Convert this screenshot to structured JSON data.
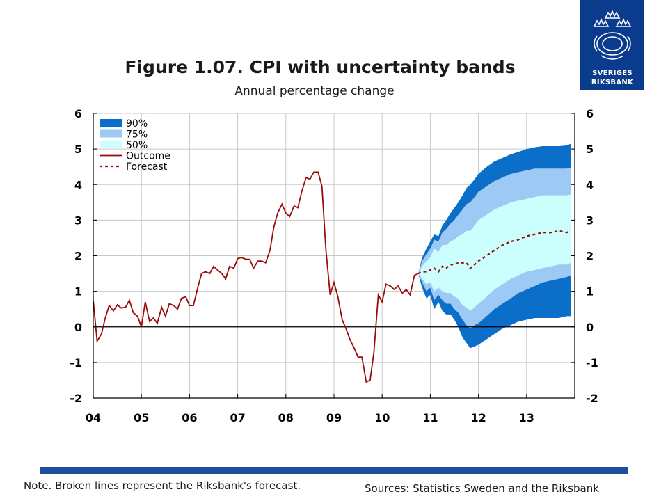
{
  "header": {
    "title": "Figure 1.07. CPI with uncertainty bands",
    "subtitle": "Annual percentage change"
  },
  "logo": {
    "line1": "SVERIGES",
    "line2": "RIKSBANK",
    "icon": "crown-seal-icon"
  },
  "footer": {
    "note": "Note. Broken lines represent the Riksbank's forecast.",
    "sources": "Sources: Statistics Sweden and the Riksbank"
  },
  "colors": {
    "band90": "#0b6fc9",
    "band75": "#9dcaf4",
    "band50": "#ccfefe",
    "outcome": "#9b0a0a",
    "forecast": "#9b0a0a",
    "grid": "#c8c8c8",
    "bar": "#1f4e9a"
  },
  "chart_data": {
    "type": "line",
    "title": "Figure 1.07. CPI with uncertainty bands",
    "subtitle": "Annual percentage change",
    "xlabel": "",
    "ylabel": "",
    "x_tick_labels": [
      "04",
      "05",
      "06",
      "07",
      "08",
      "09",
      "10",
      "11",
      "12",
      "13"
    ],
    "x_range": [
      2004.0,
      2014.0
    ],
    "ylim": [
      -2,
      6
    ],
    "y_ticks": [
      -2,
      -1,
      0,
      1,
      2,
      3,
      4,
      5,
      6
    ],
    "grid": true,
    "legend_position": "top-left",
    "legend": [
      "90%",
      "75%",
      "50%",
      "Outcome",
      "Forecast"
    ],
    "outcome": {
      "name": "Outcome",
      "x": [
        2004.0,
        2004.08,
        2004.17,
        2004.25,
        2004.33,
        2004.42,
        2004.5,
        2004.58,
        2004.67,
        2004.75,
        2004.83,
        2004.92,
        2005.0,
        2005.08,
        2005.17,
        2005.25,
        2005.33,
        2005.42,
        2005.5,
        2005.58,
        2005.67,
        2005.75,
        2005.83,
        2005.92,
        2006.0,
        2006.08,
        2006.17,
        2006.25,
        2006.33,
        2006.42,
        2006.5,
        2006.58,
        2006.67,
        2006.75,
        2006.83,
        2006.92,
        2007.0,
        2007.08,
        2007.17,
        2007.25,
        2007.33,
        2007.42,
        2007.5,
        2007.58,
        2007.67,
        2007.75,
        2007.83,
        2007.92,
        2008.0,
        2008.08,
        2008.17,
        2008.25,
        2008.33,
        2008.42,
        2008.5,
        2008.58,
        2008.67,
        2008.75,
        2008.83,
        2008.92,
        2009.0,
        2009.08,
        2009.17,
        2009.25,
        2009.33,
        2009.42,
        2009.5,
        2009.58,
        2009.67,
        2009.75,
        2009.83,
        2009.92,
        2010.0,
        2010.08,
        2010.17,
        2010.25,
        2010.33,
        2010.42,
        2010.5,
        2010.58,
        2010.67,
        2010.75
      ],
      "values": [
        0.75,
        -0.4,
        -0.2,
        0.25,
        0.6,
        0.45,
        0.62,
        0.53,
        0.55,
        0.75,
        0.4,
        0.3,
        0.0,
        0.7,
        0.15,
        0.25,
        0.1,
        0.55,
        0.3,
        0.65,
        0.6,
        0.5,
        0.8,
        0.85,
        0.6,
        0.6,
        1.1,
        1.5,
        1.55,
        1.5,
        1.7,
        1.6,
        1.5,
        1.35,
        1.7,
        1.65,
        1.92,
        1.95,
        1.9,
        1.9,
        1.65,
        1.85,
        1.85,
        1.8,
        2.15,
        2.8,
        3.2,
        3.45,
        3.2,
        3.1,
        3.4,
        3.35,
        3.8,
        4.2,
        4.15,
        4.35,
        4.35,
        3.95,
        2.2,
        0.9,
        1.25,
        0.85,
        0.2,
        -0.05,
        -0.35,
        -0.6,
        -0.85,
        -0.85,
        -1.55,
        -1.5,
        -0.7,
        0.9,
        0.7,
        1.2,
        1.15,
        1.05,
        1.15,
        0.95,
        1.05,
        0.9,
        1.45,
        1.5
      ]
    },
    "forecast": {
      "name": "Forecast",
      "x": [
        2010.75,
        2010.83,
        2010.92,
        2011.0,
        2011.08,
        2011.17,
        2011.25,
        2011.33,
        2011.42,
        2011.5,
        2011.58,
        2011.67,
        2011.75,
        2011.83,
        2011.92,
        2012.0,
        2012.17,
        2012.33,
        2012.5,
        2012.67,
        2012.83,
        2013.0,
        2013.17,
        2013.33,
        2013.5,
        2013.67,
        2013.83,
        2013.92
      ],
      "values": [
        1.5,
        1.55,
        1.55,
        1.6,
        1.65,
        1.55,
        1.7,
        1.65,
        1.75,
        1.75,
        1.8,
        1.8,
        1.8,
        1.65,
        1.75,
        1.85,
        2.0,
        2.15,
        2.3,
        2.4,
        2.45,
        2.55,
        2.6,
        2.65,
        2.65,
        2.7,
        2.65,
        2.7
      ]
    },
    "bands": {
      "x": [
        2010.75,
        2010.83,
        2010.92,
        2011.0,
        2011.08,
        2011.17,
        2011.25,
        2011.33,
        2011.42,
        2011.5,
        2011.58,
        2011.67,
        2011.75,
        2011.83,
        2011.92,
        2012.0,
        2012.17,
        2012.33,
        2012.5,
        2012.67,
        2012.83,
        2013.0,
        2013.17,
        2013.33,
        2013.5,
        2013.67,
        2013.83,
        2013.92
      ],
      "p90_low": [
        1.5,
        1.1,
        0.8,
        0.9,
        0.5,
        0.7,
        0.45,
        0.35,
        0.35,
        0.2,
        0.0,
        -0.3,
        -0.45,
        -0.6,
        -0.55,
        -0.5,
        -0.35,
        -0.2,
        -0.05,
        0.05,
        0.15,
        0.2,
        0.25,
        0.25,
        0.25,
        0.25,
        0.3,
        0.3
      ],
      "p75_low": [
        1.5,
        1.25,
        1.0,
        1.1,
        0.75,
        0.9,
        0.75,
        0.65,
        0.65,
        0.5,
        0.4,
        0.2,
        0.05,
        -0.05,
        0.05,
        0.1,
        0.3,
        0.5,
        0.65,
        0.8,
        0.95,
        1.05,
        1.15,
        1.25,
        1.3,
        1.35,
        1.4,
        1.45
      ],
      "p50_low": [
        1.5,
        1.35,
        1.2,
        1.25,
        1.0,
        1.1,
        1.0,
        0.95,
        0.95,
        0.85,
        0.8,
        0.6,
        0.55,
        0.45,
        0.55,
        0.65,
        0.85,
        1.05,
        1.2,
        1.35,
        1.45,
        1.55,
        1.6,
        1.65,
        1.7,
        1.75,
        1.75,
        1.8
      ],
      "p50_high": [
        1.5,
        1.7,
        1.85,
        1.95,
        2.2,
        2.1,
        2.3,
        2.3,
        2.4,
        2.45,
        2.55,
        2.6,
        2.7,
        2.7,
        2.85,
        3.0,
        3.15,
        3.3,
        3.4,
        3.5,
        3.55,
        3.6,
        3.65,
        3.7,
        3.7,
        3.7,
        3.7,
        3.72
      ],
      "p75_high": [
        1.5,
        1.85,
        2.05,
        2.2,
        2.45,
        2.4,
        2.65,
        2.75,
        2.9,
        3.0,
        3.15,
        3.3,
        3.45,
        3.5,
        3.65,
        3.8,
        3.95,
        4.1,
        4.2,
        4.3,
        4.35,
        4.4,
        4.45,
        4.45,
        4.45,
        4.45,
        4.45,
        4.48
      ],
      "p90_high": [
        1.5,
        1.95,
        2.2,
        2.4,
        2.6,
        2.55,
        2.85,
        3.0,
        3.2,
        3.35,
        3.5,
        3.7,
        3.9,
        4.0,
        4.15,
        4.3,
        4.5,
        4.65,
        4.75,
        4.85,
        4.92,
        5.0,
        5.05,
        5.08,
        5.08,
        5.08,
        5.1,
        5.15
      ]
    }
  }
}
